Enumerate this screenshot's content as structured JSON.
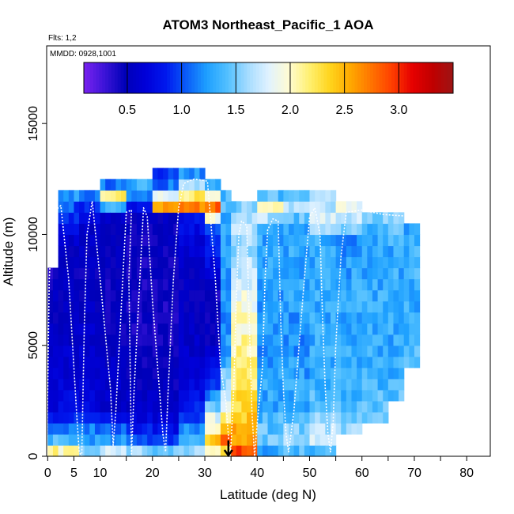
{
  "chart_data": {
    "type": "heatmap",
    "title": "ATOM3 Northeast_Pacific_1 AOA",
    "annotations": {
      "flights": "Flts: 1,2",
      "dates": "MMDD: 0928,1001"
    },
    "xlabel": "Latitude (deg N)",
    "ylabel": "Altitude (m)",
    "xlim": [
      -0.2,
      84.5
    ],
    "ylim": [
      0,
      18500
    ],
    "x_ticks": [
      0,
      5,
      10,
      20,
      30,
      40,
      50,
      60,
      70,
      80
    ],
    "y_ticks": [
      0,
      5000,
      10000,
      15000
    ],
    "y_tick_labels": [
      "0",
      "5000",
      "10000",
      "15000"
    ],
    "colorbar": {
      "min": 0.1,
      "max": 3.5,
      "ticks": [
        0.5,
        1.0,
        1.5,
        2.0,
        2.5,
        3.0
      ],
      "tick_labels": [
        "0.5",
        "1.0",
        "1.5",
        "2.0",
        "2.5",
        "3.0"
      ],
      "colors": [
        "#7a22f0",
        "#3c14d8",
        "#0000b8",
        "#0000d8",
        "#0018ee",
        "#0a5cf8",
        "#1ea0ff",
        "#52c0ff",
        "#a6dcff",
        "#e0f2ff",
        "#fffbd2",
        "#fff070",
        "#ffd41c",
        "#ffa800",
        "#ff7400",
        "#ff4000",
        "#e60000",
        "#c00000",
        "#9c1414"
      ]
    },
    "grid": {
      "bin_width_lat": 1,
      "bin_height_alt": 500,
      "columns": [
        {
          "lat_range": [
            0,
            2
          ],
          "profile": [
            [
              0,
              2.2
            ],
            [
              500,
              1.4
            ],
            [
              1000,
              1.0
            ],
            [
              2000,
              0.7
            ],
            [
              4000,
              0.6
            ],
            [
              7000,
              0.5
            ],
            [
              8000,
              0.4
            ]
          ]
        },
        {
          "lat_range": [
            2,
            6
          ],
          "profile": [
            [
              0,
              2.0
            ],
            [
              500,
              1.3
            ],
            [
              1500,
              0.9
            ],
            [
              3000,
              0.65
            ],
            [
              6000,
              0.55
            ],
            [
              9000,
              0.5
            ],
            [
              11000,
              1.0
            ],
            [
              11500,
              1.2
            ]
          ]
        },
        {
          "lat_range": [
            6,
            10
          ],
          "profile": [
            [
              0,
              1.5
            ],
            [
              500,
              1.2
            ],
            [
              1000,
              1.1
            ],
            [
              2000,
              0.7
            ],
            [
              5000,
              0.6
            ],
            [
              8000,
              0.5
            ],
            [
              10000,
              0.55
            ],
            [
              11000,
              0.9
            ],
            [
              11500,
              1.1
            ]
          ]
        },
        {
          "lat_range": [
            10,
            15
          ],
          "profile": [
            [
              0,
              1.7
            ],
            [
              500,
              1.2
            ],
            [
              2000,
              0.6
            ],
            [
              5000,
              0.5
            ],
            [
              8000,
              0.45
            ],
            [
              10500,
              0.55
            ],
            [
              11500,
              2.2
            ],
            [
              12000,
              1.1
            ]
          ]
        },
        {
          "lat_range": [
            15,
            20
          ],
          "profile": [
            [
              0,
              1.6
            ],
            [
              500,
              1.0
            ],
            [
              2000,
              0.55
            ],
            [
              5000,
              0.45
            ],
            [
              8000,
              0.4
            ],
            [
              10500,
              0.5
            ],
            [
              11500,
              1.1
            ],
            [
              12000,
              1.3
            ]
          ]
        },
        {
          "lat_range": [
            20,
            25
          ],
          "profile": [
            [
              0,
              1.5
            ],
            [
              500,
              0.9
            ],
            [
              2000,
              0.55
            ],
            [
              5000,
              0.4
            ],
            [
              8000,
              0.45
            ],
            [
              10500,
              0.5
            ],
            [
              11000,
              2.6
            ],
            [
              12000,
              1.1
            ],
            [
              12500,
              1.0
            ]
          ]
        },
        {
          "lat_range": [
            25,
            30
          ],
          "profile": [
            [
              0,
              1.6
            ],
            [
              500,
              1.4
            ],
            [
              1500,
              0.9
            ],
            [
              3000,
              0.7
            ],
            [
              5000,
              0.55
            ],
            [
              8000,
              0.5
            ],
            [
              10500,
              0.8
            ],
            [
              11000,
              2.7
            ],
            [
              12500,
              1.2
            ]
          ]
        },
        {
          "lat_range": [
            30,
            33
          ],
          "profile": [
            [
              0,
              2.1
            ],
            [
              500,
              2.4
            ],
            [
              1500,
              1.8
            ],
            [
              3000,
              0.9
            ],
            [
              5000,
              0.5
            ],
            [
              7000,
              0.45
            ],
            [
              10000,
              1.0
            ],
            [
              11000,
              2.8
            ],
            [
              12000,
              1.3
            ]
          ]
        },
        {
          "lat_range": [
            33,
            35
          ],
          "profile": [
            [
              0,
              2.3
            ],
            [
              500,
              2.8
            ],
            [
              1500,
              2.1
            ],
            [
              3000,
              1.6
            ],
            [
              4500,
              1.2
            ],
            [
              7000,
              1.2
            ],
            [
              10000,
              1.3
            ],
            [
              11500,
              1.4
            ]
          ]
        },
        {
          "lat_range": [
            35,
            40
          ],
          "profile": [
            [
              0,
              2.9
            ],
            [
              500,
              2.6
            ],
            [
              1500,
              2.4
            ],
            [
              3000,
              2.2
            ],
            [
              6000,
              2.0
            ],
            [
              9000,
              1.6
            ],
            [
              10000,
              1.7
            ],
            [
              11000,
              1.5
            ]
          ]
        },
        {
          "lat_range": [
            40,
            45
          ],
          "profile": [
            [
              0,
              1.3
            ],
            [
              500,
              1.5
            ],
            [
              2000,
              1.3
            ],
            [
              5000,
              1.2
            ],
            [
              8000,
              1.25
            ],
            [
              10000,
              1.3
            ],
            [
              11000,
              2.0
            ],
            [
              11500,
              1.4
            ]
          ]
        },
        {
          "lat_range": [
            45,
            50
          ],
          "profile": [
            [
              0,
              1.4
            ],
            [
              500,
              1.6
            ],
            [
              2000,
              1.3
            ],
            [
              5000,
              1.2
            ],
            [
              8000,
              1.3
            ],
            [
              10000,
              1.3
            ],
            [
              11000,
              1.6
            ],
            [
              11500,
              1.5
            ]
          ]
        },
        {
          "lat_range": [
            50,
            55
          ],
          "profile": [
            [
              0,
              1.4
            ],
            [
              500,
              1.8
            ],
            [
              2000,
              1.4
            ],
            [
              4000,
              1.3
            ],
            [
              7000,
              1.3
            ],
            [
              9500,
              1.3
            ],
            [
              10500,
              1.8
            ],
            [
              11500,
              1.6
            ]
          ]
        },
        {
          "lat_range": [
            55,
            60
          ],
          "profile": [
            [
              1000,
              1.6
            ],
            [
              2000,
              1.4
            ],
            [
              4000,
              1.3
            ],
            [
              7000,
              1.3
            ],
            [
              9500,
              1.2
            ],
            [
              10500,
              1.7
            ],
            [
              11000,
              1.9
            ]
          ]
        },
        {
          "lat_range": [
            60,
            65
          ],
          "profile": [
            [
              1500,
              1.5
            ],
            [
              3000,
              1.35
            ],
            [
              5000,
              1.3
            ],
            [
              8000,
              1.3
            ],
            [
              10000,
              1.3
            ],
            [
              10500,
              1.5
            ]
          ]
        },
        {
          "lat_range": [
            65,
            68
          ],
          "profile": [
            [
              2500,
              1.4
            ],
            [
              4000,
              1.3
            ],
            [
              6000,
              1.3
            ],
            [
              9000,
              1.3
            ],
            [
              10500,
              1.5
            ]
          ]
        },
        {
          "lat_range": [
            68,
            71
          ],
          "profile": [
            [
              4000,
              1.4
            ],
            [
              6000,
              1.3
            ],
            [
              8000,
              1.35
            ],
            [
              10000,
              1.3
            ]
          ]
        }
      ]
    },
    "flight_track": {
      "color": "white",
      "points": [
        [
          -0.2,
          0
        ],
        [
          0,
          3000
        ],
        [
          0.3,
          8000
        ],
        [
          1,
          11000
        ],
        [
          2.5,
          11300
        ],
        [
          4,
          8000
        ],
        [
          5.5,
          2000
        ],
        [
          6,
          200
        ],
        [
          6.5,
          0
        ],
        [
          7,
          6000
        ],
        [
          7.5,
          10000
        ],
        [
          8.5,
          11500
        ],
        [
          10,
          8000
        ],
        [
          12,
          3000
        ],
        [
          12.5,
          500
        ],
        [
          13,
          2000
        ],
        [
          15,
          11000
        ],
        [
          16,
          11100
        ],
        [
          15.5,
          8000
        ],
        [
          15.8,
          3000
        ],
        [
          16,
          100
        ],
        [
          16.5,
          3000
        ],
        [
          18.3,
          11200
        ],
        [
          19,
          10800
        ],
        [
          20,
          7000
        ],
        [
          21,
          4000
        ],
        [
          22,
          1000
        ],
        [
          22.5,
          200
        ],
        [
          23,
          3000
        ],
        [
          24,
          8000
        ],
        [
          25,
          11200
        ],
        [
          26,
          12300
        ],
        [
          28,
          12500
        ],
        [
          30.5,
          12400
        ],
        [
          31,
          11000
        ],
        [
          32,
          8000
        ],
        [
          33,
          4000
        ],
        [
          34,
          2500
        ],
        [
          34.8,
          0
        ],
        [
          35,
          500
        ],
        [
          35.5,
          3000
        ],
        [
          36,
          7000
        ],
        [
          36.5,
          10000
        ],
        [
          37,
          10600
        ],
        [
          38,
          10400
        ],
        [
          38.5,
          6000
        ],
        [
          39,
          2000
        ],
        [
          39.5,
          0
        ],
        [
          40,
          1500
        ],
        [
          41,
          4000
        ],
        [
          41.5,
          8000
        ],
        [
          42,
          10200
        ],
        [
          43,
          10700
        ],
        [
          44,
          10600
        ],
        [
          44.5,
          6000
        ],
        [
          45,
          3000
        ],
        [
          45.5,
          1000
        ],
        [
          46,
          200
        ],
        [
          47,
          2000
        ],
        [
          48,
          5000
        ],
        [
          49,
          8000
        ],
        [
          50,
          10800
        ],
        [
          51,
          11200
        ],
        [
          52,
          10000
        ],
        [
          52.5,
          6000
        ],
        [
          53,
          3000
        ],
        [
          53.5,
          1000
        ],
        [
          54,
          200
        ],
        [
          54.5,
          1500
        ],
        [
          55,
          5000
        ],
        [
          56,
          9000
        ],
        [
          57,
          11000
        ],
        [
          60,
          11100
        ],
        [
          64,
          10900
        ],
        [
          70,
          10800
        ]
      ]
    },
    "marker": {
      "lat": 34.5,
      "alt": 0,
      "shape": "down-arrow"
    }
  }
}
